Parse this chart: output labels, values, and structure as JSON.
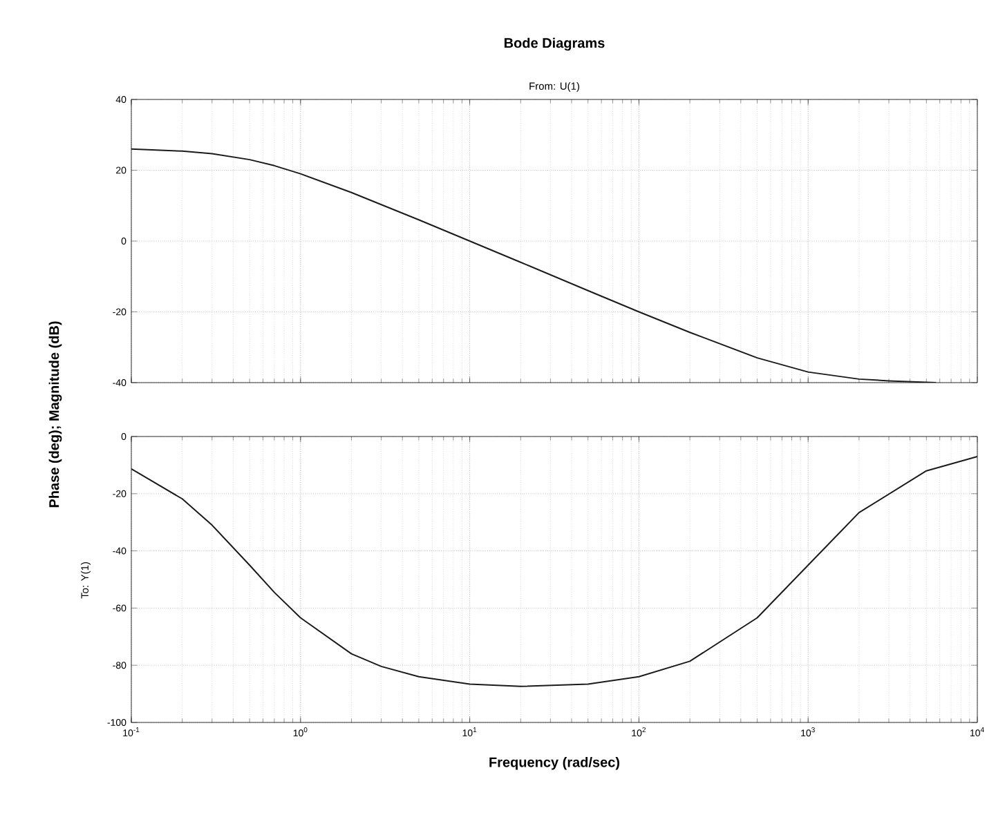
{
  "chart_data": [
    {
      "type": "line",
      "title": "Bode Diagrams",
      "subtitle": "From: U(1)",
      "ylabel": "Phase (deg); Magnitude (dB)",
      "log": "x",
      "grid": true,
      "tick_labels": "y",
      "xlim": [
        0.1,
        10000
      ],
      "ylim": [
        -40,
        40
      ],
      "xticks": [
        {
          "value": 0.1,
          "label": null
        },
        {
          "value": 1,
          "label": null
        },
        {
          "value": 10,
          "label": null
        },
        {
          "value": 100,
          "label": null
        },
        {
          "value": 1000,
          "label": null
        },
        {
          "value": 10000,
          "label": null
        }
      ],
      "yticks": [
        -40,
        -20,
        0,
        20,
        40
      ],
      "series": [
        {
          "color": "#1a1a1a",
          "x": [
            0.1,
            0.2,
            0.3,
            0.5,
            0.7,
            1,
            2,
            3,
            5,
            10,
            20,
            50,
            100,
            200,
            500,
            1000,
            2000,
            3000,
            5700
          ],
          "values": [
            26,
            25.4,
            24.7,
            23,
            21.3,
            19,
            13.7,
            10.3,
            6,
            0,
            -6,
            -14,
            -20,
            -25.8,
            -33,
            -37,
            -39,
            -39.5,
            -40
          ]
        }
      ]
    },
    {
      "type": "line",
      "ylabel": "To: Y(1)",
      "xlabel": "Frequency (rad/sec)",
      "log": "x",
      "grid": true,
      "xlim": [
        0.1,
        10000
      ],
      "ylim": [
        -100,
        0
      ],
      "xticks": [
        {
          "value": 0.1,
          "label": "10$^{-1}$"
        },
        {
          "value": 1,
          "label": "10$^{0}$"
        },
        {
          "value": 10,
          "label": "10$^{1}$"
        },
        {
          "value": 100,
          "label": "10$^{2}$"
        },
        {
          "value": 1000,
          "label": "10$^{3}$"
        },
        {
          "value": 10000,
          "label": "10$^{4}$"
        }
      ],
      "yticks": [
        -100,
        -80,
        -60,
        -40,
        -20,
        0
      ],
      "series": [
        {
          "color": "#1a1a1a",
          "x": [
            0.1,
            0.2,
            0.3,
            0.5,
            0.7,
            1,
            2,
            3,
            5,
            10,
            20,
            50,
            100,
            200,
            500,
            1000,
            2000,
            5000,
            10000
          ],
          "values": [
            -11.3,
            -21.8,
            -31,
            -45,
            -54.5,
            -63.4,
            -76,
            -80.4,
            -84,
            -86.6,
            -87.4,
            -86.6,
            -84,
            -78.6,
            -63.4,
            -45,
            -26.6,
            -12,
            -7
          ]
        }
      ]
    }
  ]
}
